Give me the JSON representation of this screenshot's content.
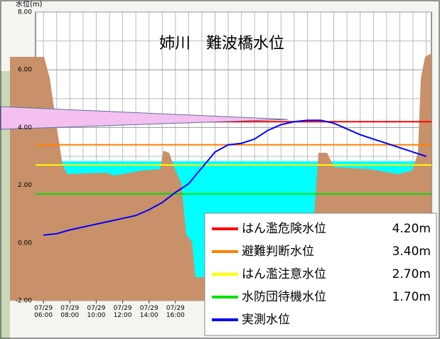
{
  "chart_data": {
    "type": "line",
    "title": "姉川　難波橋水位",
    "y_label": "水位(m)",
    "x": [
      6,
      7,
      8,
      9,
      10,
      11,
      12,
      13,
      14,
      15,
      16,
      17,
      18,
      19,
      20,
      21,
      22,
      23,
      24,
      25,
      26,
      27,
      28,
      29,
      30,
      31,
      32,
      33,
      34,
      35
    ],
    "series": [
      {
        "name": "実測水位",
        "color": "#0000ff",
        "values": [
          0.27,
          0.32,
          0.45,
          0.55,
          0.65,
          0.75,
          0.85,
          0.95,
          1.15,
          1.4,
          1.75,
          2.05,
          2.6,
          3.15,
          3.4,
          3.45,
          3.6,
          3.9,
          4.1,
          4.2,
          4.25,
          4.25,
          4.15,
          3.95,
          3.75,
          3.6,
          3.45,
          3.3,
          3.15,
          3.0
        ]
      }
    ],
    "thresholds": [
      {
        "name": "はん濫危険水位",
        "color": "#ff0000",
        "value": 4.2,
        "value_label": "4.20m"
      },
      {
        "name": "避難判断水位",
        "color": "#ff8000",
        "value": 3.4,
        "value_label": "3.40m"
      },
      {
        "name": "はん濫注意水位",
        "color": "#ffff00",
        "value": 2.7,
        "value_label": "2.70m"
      },
      {
        "name": "水防団待機水位",
        "color": "#00e000",
        "value": 1.7,
        "value_label": "1.70m"
      }
    ],
    "xlim": [
      5.4,
      35.4
    ],
    "xticks": [
      {
        "value": 6,
        "label": "07/29 06:00"
      },
      {
        "value": 8,
        "label": "07/29 08:00"
      },
      {
        "value": 10,
        "label": "07/29 10:00"
      },
      {
        "value": 12,
        "label": "07/29 12:00"
      },
      {
        "value": 14,
        "label": "07/29 14:00"
      },
      {
        "value": 16,
        "label": "07/29 16:00"
      }
    ],
    "xgrid_step": 1,
    "ylim": [
      -2,
      8
    ],
    "yticks": [
      {
        "value": 8,
        "label": "8.00"
      },
      {
        "value": 6,
        "label": "6.00"
      },
      {
        "value": 4,
        "label": "4.00"
      },
      {
        "value": 2,
        "label": "2.00"
      },
      {
        "value": 0,
        "label": "0.00"
      },
      {
        "value": -2,
        "label": "-2.00"
      }
    ],
    "yminor": [
      7,
      5,
      3,
      1,
      -1
    ],
    "grid": true
  }
}
